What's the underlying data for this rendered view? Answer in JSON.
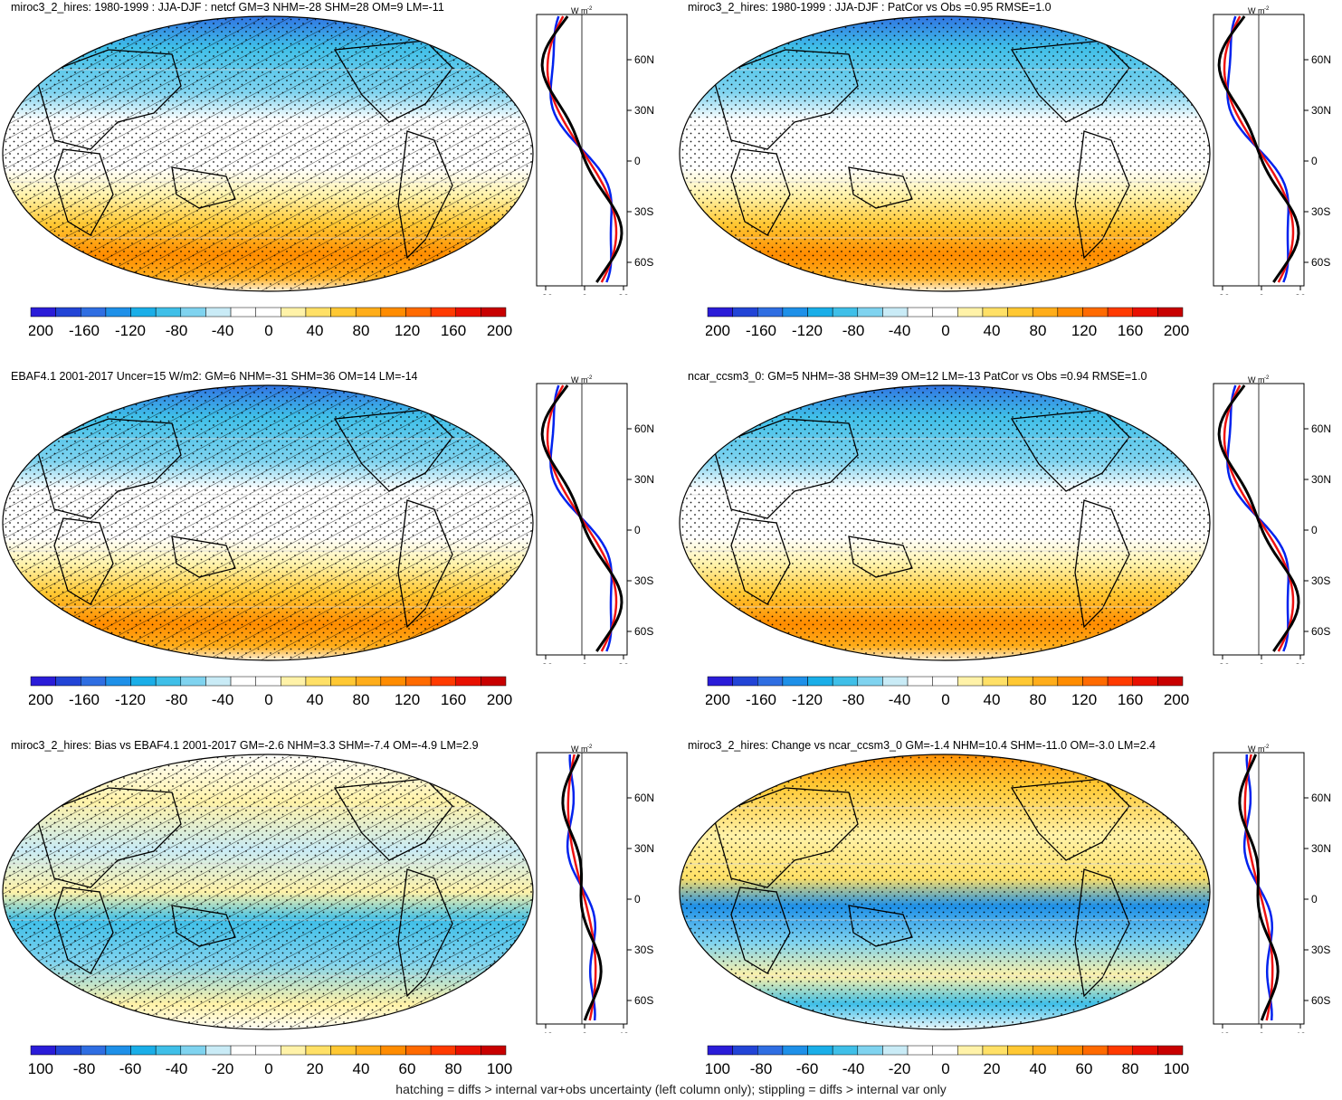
{
  "colors": {
    "palette_blue_to_red": [
      "#2a1cd8",
      "#2244d6",
      "#2f6ee2",
      "#1e90e8",
      "#1aaee8",
      "#3fbfe8",
      "#7fd3ef",
      "#c9ebf6",
      "#ffffff",
      "#ffffff",
      "#fff2a8",
      "#ffe066",
      "#ffc833",
      "#ffad1a",
      "#ff8c00",
      "#ff6a00",
      "#ff3a00",
      "#e81000",
      "#c80000"
    ],
    "hatch": "#000000",
    "obs_line": "#0022ee",
    "model_line": "#000000",
    "other_line": "#ee1111"
  },
  "colorbar_ticks_main": [
    "-200",
    "-160",
    "-120",
    "-80",
    "-40",
    "0",
    "40",
    "80",
    "120",
    "160",
    "200"
  ],
  "colorbar_ticks_diff": [
    "-100",
    "-80",
    "-60",
    "-40",
    "-20",
    "0",
    "20",
    "40",
    "60",
    "80",
    "100"
  ],
  "zonal_unit": "W m",
  "zonal_unit_sup": "-2",
  "lat_labels": [
    "60N",
    "30N",
    "0",
    "30S",
    "60S"
  ],
  "panels": [
    {
      "title": "miroc3_2_hires: 1980-1999 : JJA-DJF : netcf GM=3 NHM=-28 SHM=28 OM=9 LM=-11",
      "zonal_ticks": [
        "-80",
        "0",
        "80"
      ],
      "hatched": true
    },
    {
      "title": "miroc3_2_hires: 1980-1999 : JJA-DJF : PatCor vs Obs =0.95 RMSE=1.0",
      "zonal_ticks": [
        "-80",
        "0",
        "80"
      ],
      "hatched": false
    },
    {
      "title": "EBAF4.1 2001-2017 Uncer=15 W/m2: GM=6 NHM=-31 SHM=36 OM=14 LM=-14",
      "zonal_ticks": [
        "-80",
        "0",
        "80"
      ],
      "hatched": true
    },
    {
      "title": "ncar_ccsm3_0: GM=5 NHM=-38 SHM=39 OM=12 LM=-13 PatCor vs Obs =0.94 RMSE=1.0",
      "zonal_ticks": [
        "-80",
        "0",
        "80"
      ],
      "hatched": false
    },
    {
      "title": "miroc3_2_hires: Bias vs EBAF4.1 2001-2017 GM=-2.6 NHM=3.3 SHM=-7.4 OM=-4.9 LM=2.9",
      "zonal_ticks": [
        "-40",
        "0",
        "40"
      ],
      "hatched": true
    },
    {
      "title": "miroc3_2_hires: Change vs ncar_ccsm3_0 GM=-1.4 NHM=10.4 SHM=-11.0 OM=-3.0 LM=2.4",
      "zonal_ticks": [
        "-40",
        "0",
        "40"
      ],
      "hatched": false
    }
  ],
  "footer": "hatching = diffs > internal var+obs uncertainty (left column only); stippling = diffs > internal var only"
}
